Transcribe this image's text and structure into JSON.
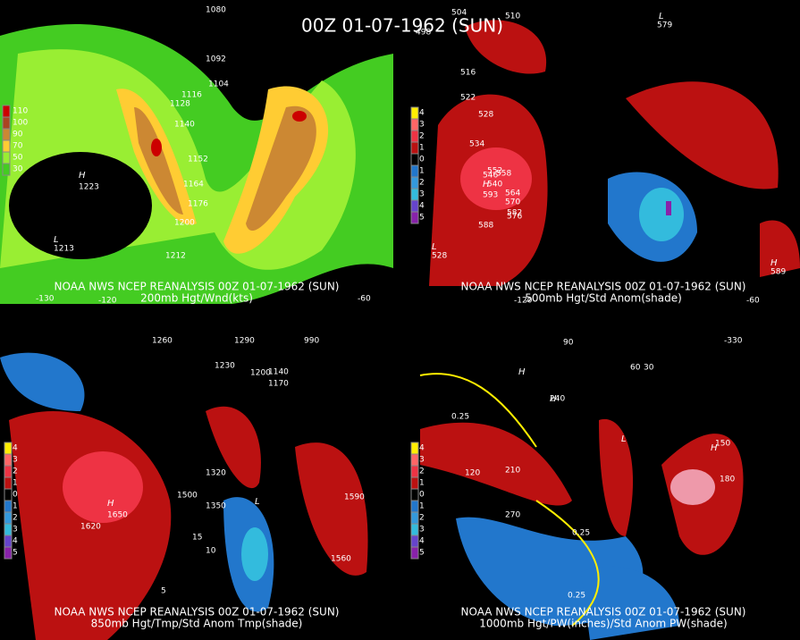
{
  "title": "00Z 01-07-1962 (SUN)",
  "panels": [
    {
      "source": "NOAA NWS NCEP REANALYSIS 00Z 01-07-1962 (SUN)",
      "caption": "200mb Hgt/Wnd(kts)",
      "legend": [
        "110",
        "100",
        "90",
        "70",
        "50",
        "30"
      ],
      "labels": [
        "1080",
        "1092",
        "1104",
        "1116",
        "1128",
        "1140",
        "1152",
        "1164",
        "1176",
        "1200",
        "1212",
        "H",
        "1223",
        "L",
        "1213",
        "-130",
        "-120",
        "-60"
      ]
    },
    {
      "source": "NOAA NWS NCEP REANALYSIS 00Z 01-07-1962 (SUN)",
      "caption": "500mb Hgt/Std Anom(shade)",
      "legend": [
        "4",
        "3",
        "2",
        "1",
        "0",
        "1",
        "2",
        "3",
        "4",
        "5"
      ],
      "labels": [
        "504",
        "510",
        "498",
        "516",
        "522",
        "528",
        "534",
        "540",
        "546",
        "552",
        "558",
        "564",
        "570",
        "576",
        "582",
        "588",
        "H",
        "593",
        "L",
        "528",
        "L",
        "579",
        "H",
        "589",
        "-120",
        "-60"
      ]
    },
    {
      "source": "NOAA NWS NCEP REANALYSIS 00Z 01-07-1962 (SUN)",
      "caption": "850mb Hgt/Tmp/Std Anom Tmp(shade)",
      "legend": [
        "4",
        "3",
        "2",
        "1",
        "0",
        "1",
        "2",
        "3",
        "4",
        "5"
      ],
      "labels": [
        "1260",
        "1290",
        "1230",
        "1200",
        "1170",
        "1140",
        "990",
        "1320",
        "1350",
        "1500",
        "1560",
        "1590",
        "1620",
        "H",
        "1650",
        "15",
        "10",
        "5",
        "L"
      ]
    },
    {
      "source": "NOAA NWS NCEP REANALYSIS 00Z 01-07-1962 (SUN)",
      "caption": "1000mb Hgt/PW(inches)/Std Anom PW(shade)",
      "legend": [
        "4",
        "3",
        "2",
        "1",
        "0",
        "1",
        "2",
        "3",
        "4",
        "5"
      ],
      "labels": [
        "-330",
        "90",
        "60",
        "30",
        "240",
        "210",
        "180",
        "150",
        "120",
        "270",
        "0.25",
        "0.25",
        "0.25",
        "H",
        "H",
        "L",
        "H"
      ]
    }
  ]
}
